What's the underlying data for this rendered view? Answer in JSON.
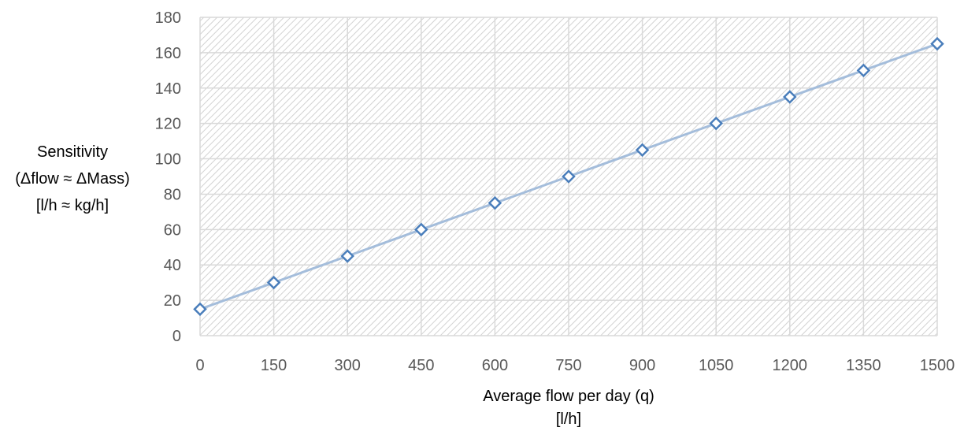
{
  "chart_data": {
    "type": "line",
    "title": "",
    "xlabel_lines": [
      "Average flow per day (q)",
      "[l/h]"
    ],
    "ylabel_lines": [
      "Sensitivity",
      "(Δflow ≈ ΔMass)",
      "[l/h ≈ kg/h]"
    ],
    "x_ticks": [
      0,
      150,
      300,
      450,
      600,
      750,
      900,
      1050,
      1200,
      1350,
      1500
    ],
    "y_ticks": [
      0,
      20,
      40,
      60,
      80,
      100,
      120,
      140,
      160,
      180
    ],
    "xlim": [
      0,
      1500
    ],
    "ylim": [
      0,
      180
    ],
    "grid": true,
    "legend": "none",
    "series": [
      {
        "x": [
          0,
          150,
          300,
          450,
          600,
          750,
          900,
          1050,
          1200,
          1350,
          1500
        ],
        "values": [
          15,
          30,
          45,
          60,
          75,
          90,
          105,
          120,
          135,
          150,
          165
        ],
        "line_color": "#a4bddb",
        "marker": "diamond",
        "marker_color": "#4a7ebb"
      }
    ]
  }
}
